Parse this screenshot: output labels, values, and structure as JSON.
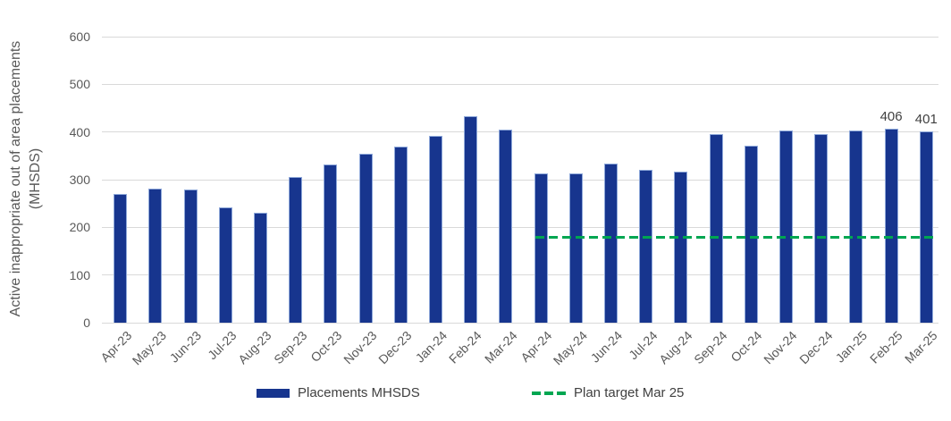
{
  "page": {
    "background": "#FFFFFF"
  },
  "y_axis": {
    "title_line1": "Active inappropriate out of area placements",
    "title_line2": "(MHSDS)",
    "ticks": [
      "0",
      "100",
      "200",
      "300",
      "400",
      "500",
      "600"
    ]
  },
  "chart_data": {
    "type": "bar",
    "title": "",
    "xlabel": "",
    "ylabel": "Active inappropriate out of area placements (MHSDS)",
    "ylim": [
      0,
      600
    ],
    "ytick_interval": 100,
    "grid": true,
    "legend_position": "bottom",
    "categories": [
      "Apr-23",
      "May-23",
      "Jun-23",
      "Jul-23",
      "Aug-23",
      "Sep-23",
      "Oct-23",
      "Nov-23",
      "Dec-23",
      "Jan-24",
      "Feb-24",
      "Mar-24",
      "Apr-24",
      "May-24",
      "Jun-24",
      "Jul-24",
      "Aug-24",
      "Sep-24",
      "Oct-24",
      "Nov-24",
      "Dec-24",
      "Jan-25",
      "Feb-25",
      "Mar-25"
    ],
    "series": [
      {
        "name": "Placements MHSDS",
        "type": "bar",
        "color": "#17358E",
        "values": [
          270,
          282,
          280,
          241,
          230,
          305,
          332,
          355,
          370,
          392,
          433,
          405,
          314,
          314,
          333,
          320,
          317,
          395,
          371,
          403,
          395,
          403,
          406,
          401
        ]
      },
      {
        "name": "Plan target Mar 25",
        "type": "dashed_line",
        "color": "#00A651",
        "value": 180,
        "start_category": "Apr-24",
        "end_category": "Mar-25"
      }
    ],
    "data_labels": [
      {
        "category": "Feb-25",
        "text": "406"
      },
      {
        "category": "Mar-25",
        "text": "401"
      }
    ]
  },
  "colors": {
    "bar": "#17358E",
    "bar_edge": "#8FA9DA",
    "target_line": "#00A651",
    "gridline": "#D9D9D9",
    "axis_text": "#595959",
    "data_label_text": "#404040"
  }
}
